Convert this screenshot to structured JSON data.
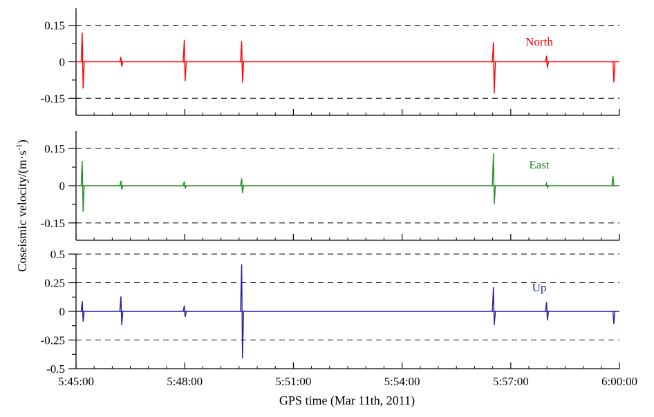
{
  "chart_data": {
    "type": "line",
    "ylabel": "Coseismic velocity/(m·s",
    "ylabel_sup": "-1",
    "ylabel_close": ")",
    "xlabel": "GPS time (Mar 11th, 2011)",
    "x_domain": [
      "5:45:00",
      "6:00:00"
    ],
    "x_ticks": [
      "5:45:00",
      "5:48:00",
      "5:51:00",
      "5:54:00",
      "5:57:00",
      "6:00:00"
    ],
    "panels": [
      {
        "label": "North",
        "color": "#ff0000",
        "ylim": [
          -0.22,
          0.22
        ],
        "y_ticks": [
          0.15,
          0,
          -0.15
        ],
        "y_tick_labels": [
          "0.15",
          "0",
          "-0.15"
        ],
        "dashed_levels": [
          0.15,
          -0.15
        ],
        "spikes": [
          {
            "t": "5:45:11",
            "up": 0.12,
            "down": -0.11
          },
          {
            "t": "5:46:15",
            "up": 0.02,
            "down": -0.02
          },
          {
            "t": "5:48:00",
            "up": 0.09,
            "down": -0.08
          },
          {
            "t": "5:49:35",
            "up": 0.085,
            "down": -0.085
          },
          {
            "t": "5:56:32",
            "up": 0.08,
            "down": -0.13
          },
          {
            "t": "5:58:00",
            "up": 0.025,
            "down": -0.025
          },
          {
            "t": "5:59:50",
            "up": 0.0,
            "down": -0.085
          }
        ]
      },
      {
        "label": "East",
        "color": "#228b22",
        "ylim": [
          -0.22,
          0.22
        ],
        "y_ticks": [
          0.15,
          0,
          -0.15
        ],
        "y_tick_labels": [
          "0.15",
          "0",
          "-0.15"
        ],
        "dashed_levels": [
          0.15,
          -0.15
        ],
        "spikes": [
          {
            "t": "5:45:11",
            "up": 0.1,
            "down": -0.105
          },
          {
            "t": "5:46:15",
            "up": 0.02,
            "down": -0.015
          },
          {
            "t": "5:48:00",
            "up": 0.018,
            "down": -0.012
          },
          {
            "t": "5:49:35",
            "up": 0.03,
            "down": -0.03
          },
          {
            "t": "5:56:32",
            "up": 0.13,
            "down": -0.075
          },
          {
            "t": "5:58:00",
            "up": 0.01,
            "down": -0.008
          },
          {
            "t": "5:59:50",
            "up": 0.04,
            "down": 0.0
          }
        ]
      },
      {
        "label": "Up",
        "color": "#1f1f9e",
        "ylim": [
          -0.5,
          0.5
        ],
        "y_ticks": [
          0.5,
          0.25,
          0,
          -0.25,
          -0.5
        ],
        "y_tick_labels": [
          "0.5",
          "0.25",
          "0",
          "-0.25",
          "-0.5"
        ],
        "dashed_levels": [
          0.5,
          0.25,
          -0.25
        ],
        "spikes": [
          {
            "t": "5:45:11",
            "up": 0.09,
            "down": -0.09
          },
          {
            "t": "5:46:15",
            "up": 0.13,
            "down": -0.12
          },
          {
            "t": "5:48:00",
            "up": 0.05,
            "down": -0.05
          },
          {
            "t": "5:49:35",
            "up": 0.41,
            "down": -0.41
          },
          {
            "t": "5:56:32",
            "up": 0.21,
            "down": -0.12
          },
          {
            "t": "5:58:00",
            "up": 0.08,
            "down": -0.08
          },
          {
            "t": "5:59:50",
            "up": 0.0,
            "down": -0.11
          }
        ]
      }
    ],
    "grid": false,
    "legend": "none"
  }
}
